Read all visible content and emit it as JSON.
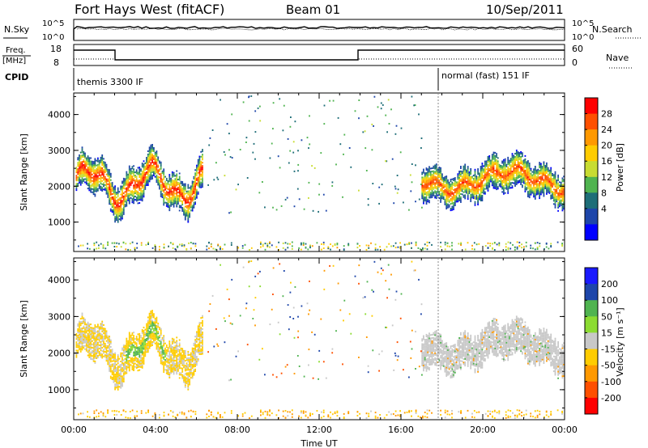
{
  "header": {
    "station": "Fort Hays West (fitACF)",
    "beam": "Beam 01",
    "date": "10/Sep/2011"
  },
  "top_panels": {
    "nsky_label": "N.Sky",
    "nsearch_label": "N.Search",
    "nsky_ticks": [
      "10^5",
      "10^0"
    ],
    "nsearch_ticks": [
      "10^5",
      "10^0"
    ],
    "freq_label_1": "Freq.",
    "freq_label_2": "[MHz]",
    "freq_ticks": [
      "18",
      "8"
    ],
    "nave_label": "Nave",
    "nave_ticks": [
      "60",
      "0"
    ],
    "cpid_label": "CPID",
    "cpid_segments": [
      "themis 3300 IF",
      "normal (fast) 151 IF"
    ]
  },
  "chart_data": [
    {
      "type": "heatmap",
      "name": "power",
      "ylabel": "Slant Range [km]",
      "xlabel": "Time UT",
      "xlim": [
        0,
        24
      ],
      "ylim": [
        180,
        4600
      ],
      "x_ticks": [
        "00:00",
        "04:00",
        "08:00",
        "12:00",
        "16:00",
        "20:00",
        "00:00"
      ],
      "y_ticks": [
        1000,
        2000,
        3000,
        4000
      ],
      "colorbar": {
        "label": "Power [dB]",
        "ticks": [
          "28",
          "24",
          "20",
          "16",
          "12",
          "8",
          "4"
        ],
        "colors": [
          "#ff0000",
          "#ff5000",
          "#ff9900",
          "#ffcc00",
          "#c8dc32",
          "#50b450",
          "#1e6e78",
          "#1e46aa",
          "#0000ff"
        ]
      },
      "echo_regions": [
        {
          "t_start": 0.0,
          "t_end": 6.3,
          "r_min": 1200,
          "r_max": 3200,
          "peak_power_db": 28
        },
        {
          "t_start": 17.0,
          "t_end": 24.0,
          "r_min": 1300,
          "r_max": 2900,
          "peak_power_db": 28
        },
        {
          "t_start": 0.0,
          "t_end": 24.0,
          "r_min": 180,
          "r_max": 400,
          "peak_power_db": 16
        }
      ]
    },
    {
      "type": "heatmap",
      "name": "velocity",
      "ylabel": "Slant Range [km]",
      "xlabel": "Time UT",
      "xlim": [
        0,
        24
      ],
      "ylim": [
        180,
        4600
      ],
      "x_ticks": [
        "00:00",
        "04:00",
        "08:00",
        "12:00",
        "16:00",
        "20:00",
        "00:00"
      ],
      "y_ticks": [
        1000,
        2000,
        3000,
        4000
      ],
      "colorbar": {
        "label": "Velocity [m s⁻¹]",
        "ticks": [
          "200",
          "100",
          "50",
          "15",
          "-15",
          "-50",
          "-100",
          "-200"
        ],
        "colors": [
          "#1a1aff",
          "#1e46aa",
          "#50b450",
          "#8cdc32",
          "#c8c8c8",
          "#ffcc00",
          "#ff9900",
          "#ff5000",
          "#ff0000"
        ]
      },
      "echo_regions": [
        {
          "t_start": 0.0,
          "t_end": 6.3,
          "r_min": 1200,
          "r_max": 3200,
          "typical_velocity": -30
        },
        {
          "t_start": 17.0,
          "t_end": 24.0,
          "r_min": 1300,
          "r_max": 2900,
          "typical_velocity": 0
        },
        {
          "t_start": 0.0,
          "t_end": 24.0,
          "r_min": 180,
          "r_max": 400,
          "typical_velocity": -60
        }
      ]
    }
  ]
}
